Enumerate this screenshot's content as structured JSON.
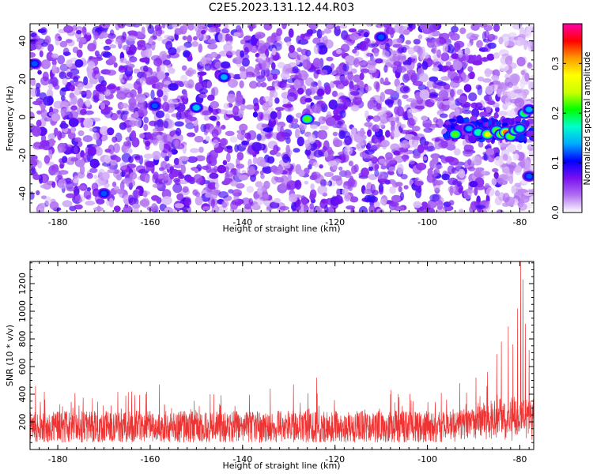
{
  "figure_title": "C2E5.2023.131.12.44.R03",
  "colors": {
    "snr_line": "#ee3333",
    "blob_min": "#e8d8fb",
    "blob_mid": "#7a16ee"
  },
  "chart_data": [
    {
      "type": "heatmap",
      "title": "",
      "xlabel": "Height of straight line (km)",
      "ylabel": "Frequency (Hz)",
      "xlim": [
        -186,
        -77
      ],
      "ylim": [
        -50,
        49
      ],
      "x_ticks": [
        {
          "value": -180,
          "label": "-180"
        },
        {
          "value": -160,
          "label": "-160"
        },
        {
          "value": -140,
          "label": "-140"
        },
        {
          "value": -120,
          "label": "-120"
        },
        {
          "value": -100,
          "label": "-100"
        },
        {
          "value": -80,
          "label": "-80"
        }
      ],
      "y_ticks": [
        {
          "value": 40,
          "label": "40"
        },
        {
          "value": 20,
          "label": "20"
        },
        {
          "value": 0,
          "label": "0"
        },
        {
          "value": -20,
          "label": "-20"
        },
        {
          "value": -40,
          "label": "-40"
        }
      ],
      "colorbar": {
        "label": "Normalized spectral amplitude",
        "range": [
          0,
          0.38
        ],
        "ticks": [
          {
            "value": 0.0,
            "label": "0.0"
          },
          {
            "value": 0.1,
            "label": "0.1"
          },
          {
            "value": 0.2,
            "label": "0.2"
          },
          {
            "value": 0.3,
            "label": "0.3"
          }
        ],
        "colors": [
          "#ffffff",
          "#b070f0",
          "#7a10f0",
          "#0000ff",
          "#00aaff",
          "#00ffcc",
          "#00ff00",
          "#ccff00",
          "#ffff00",
          "#ff9900",
          "#ff0000",
          "#ff00aa"
        ]
      },
      "background_level": 0.04,
      "hot_spots": [
        {
          "x": -94,
          "y": -9,
          "value": 0.22
        },
        {
          "x": -91,
          "y": -6,
          "value": 0.14
        },
        {
          "x": -89,
          "y": -8,
          "value": 0.18
        },
        {
          "x": -87,
          "y": -9,
          "value": 0.26
        },
        {
          "x": -85,
          "y": -7,
          "value": 0.22
        },
        {
          "x": -84,
          "y": -9,
          "value": 0.24
        },
        {
          "x": -83,
          "y": -8,
          "value": 0.32
        },
        {
          "x": -82,
          "y": -10,
          "value": 0.22
        },
        {
          "x": -81,
          "y": -7,
          "value": 0.2
        },
        {
          "x": -80,
          "y": -6,
          "value": 0.18
        },
        {
          "x": -79,
          "y": 2,
          "value": 0.2
        },
        {
          "x": -78,
          "y": 4,
          "value": 0.14
        },
        {
          "x": -126,
          "y": -1,
          "value": 0.22
        },
        {
          "x": -150,
          "y": 5,
          "value": 0.15
        },
        {
          "x": -144,
          "y": 21,
          "value": 0.14
        },
        {
          "x": -159,
          "y": 6,
          "value": 0.12
        },
        {
          "x": -170,
          "y": -40,
          "value": 0.12
        },
        {
          "x": -185,
          "y": 28,
          "value": 0.12
        },
        {
          "x": -110,
          "y": 42,
          "value": 0.12
        },
        {
          "x": -78,
          "y": -31,
          "value": 0.12
        }
      ]
    },
    {
      "type": "line",
      "title": "",
      "xlabel": "Height of straight line (km)",
      "ylabel": "SNR (10 * v/v)",
      "xlim": [
        -186,
        -77
      ],
      "ylim": [
        0,
        1360
      ],
      "x_ticks": [
        {
          "value": -180,
          "label": "-180"
        },
        {
          "value": -160,
          "label": "-160"
        },
        {
          "value": -140,
          "label": "-140"
        },
        {
          "value": -120,
          "label": "-120"
        },
        {
          "value": -100,
          "label": "-100"
        },
        {
          "value": -80,
          "label": "-80"
        }
      ],
      "y_ticks": [
        {
          "value": 200,
          "label": "200"
        },
        {
          "value": 400,
          "label": "400"
        },
        {
          "value": 600,
          "label": "600"
        },
        {
          "value": 800,
          "label": "800"
        },
        {
          "value": 1000,
          "label": "1000"
        },
        {
          "value": 1200,
          "label": "1200"
        }
      ],
      "baseline_min": 50,
      "baseline_max": 280,
      "peaks": [
        {
          "x": -184.8,
          "y": 460
        },
        {
          "x": -164,
          "y": 420
        },
        {
          "x": -158,
          "y": 470
        },
        {
          "x": -147,
          "y": 400
        },
        {
          "x": -134,
          "y": 440
        },
        {
          "x": -129,
          "y": 470
        },
        {
          "x": -124,
          "y": 520
        },
        {
          "x": -108,
          "y": 400
        },
        {
          "x": -97,
          "y": 410
        },
        {
          "x": -93,
          "y": 480
        },
        {
          "x": -89.5,
          "y": 520
        },
        {
          "x": -87,
          "y": 560
        },
        {
          "x": -85,
          "y": 690
        },
        {
          "x": -84,
          "y": 780
        },
        {
          "x": -82.5,
          "y": 890
        },
        {
          "x": -81.5,
          "y": 760
        },
        {
          "x": -80.5,
          "y": 1020
        },
        {
          "x": -79.8,
          "y": 1360
        },
        {
          "x": -79.3,
          "y": 1230
        },
        {
          "x": -78.8,
          "y": 910
        },
        {
          "x": -78,
          "y": 720
        }
      ]
    }
  ]
}
